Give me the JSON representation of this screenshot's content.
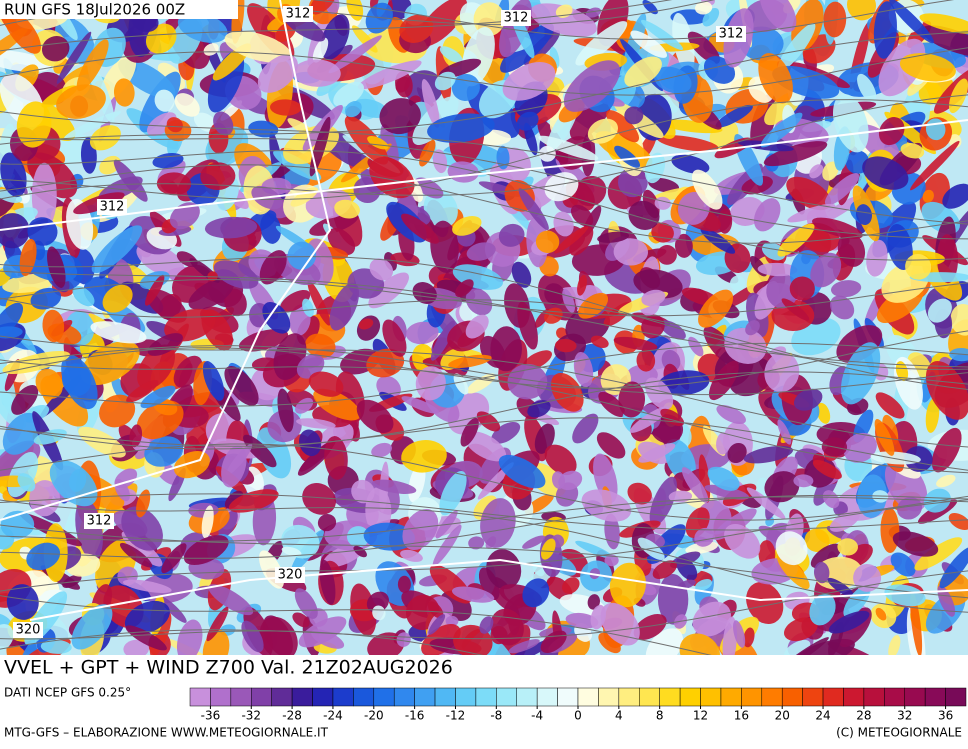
{
  "header": {
    "run": "RUN GFS 18Jul2026 00Z"
  },
  "contour_labels": [
    "312",
    "312",
    "312",
    "312",
    "312",
    "320",
    "320"
  ],
  "footer": {
    "title": "VVEL + GPT + WIND Z700 Val. 21Z02AUG2026",
    "source": "DATI NCEP GFS 0.25°",
    "credit": "MTG-GFS – ELABORAZIONE WWW.METEOGIORNALE.IT",
    "copyright": "(C) METEOGIORNALE"
  },
  "colorbar": {
    "lim": [
      -38,
      38
    ],
    "ticks": [
      -36,
      -32,
      -28,
      -24,
      -20,
      -16,
      -12,
      -8,
      -4,
      0,
      4,
      8,
      12,
      16,
      20,
      24,
      28,
      32,
      36
    ],
    "colors": [
      "#c890dc",
      "#b070cc",
      "#9a58b8",
      "#8040a8",
      "#602c98",
      "#3a1c9c",
      "#2424b4",
      "#1c3ccc",
      "#1a58dc",
      "#2070e8",
      "#3088ee",
      "#40a0f2",
      "#50b8f4",
      "#64ccf6",
      "#7cdcf8",
      "#9ae8f8",
      "#b8f0f8",
      "#d8f8fa",
      "#f0fcfc",
      "#fffde0",
      "#fff6b0",
      "#ffee80",
      "#ffe650",
      "#ffdc20",
      "#ffd000",
      "#ffc000",
      "#ffaa00",
      "#ff9400",
      "#ff7c00",
      "#f86000",
      "#ee4410",
      "#e02a20",
      "#cc1830",
      "#b8103c",
      "#a80c48",
      "#980a50",
      "#880a58",
      "#780a58"
    ]
  }
}
